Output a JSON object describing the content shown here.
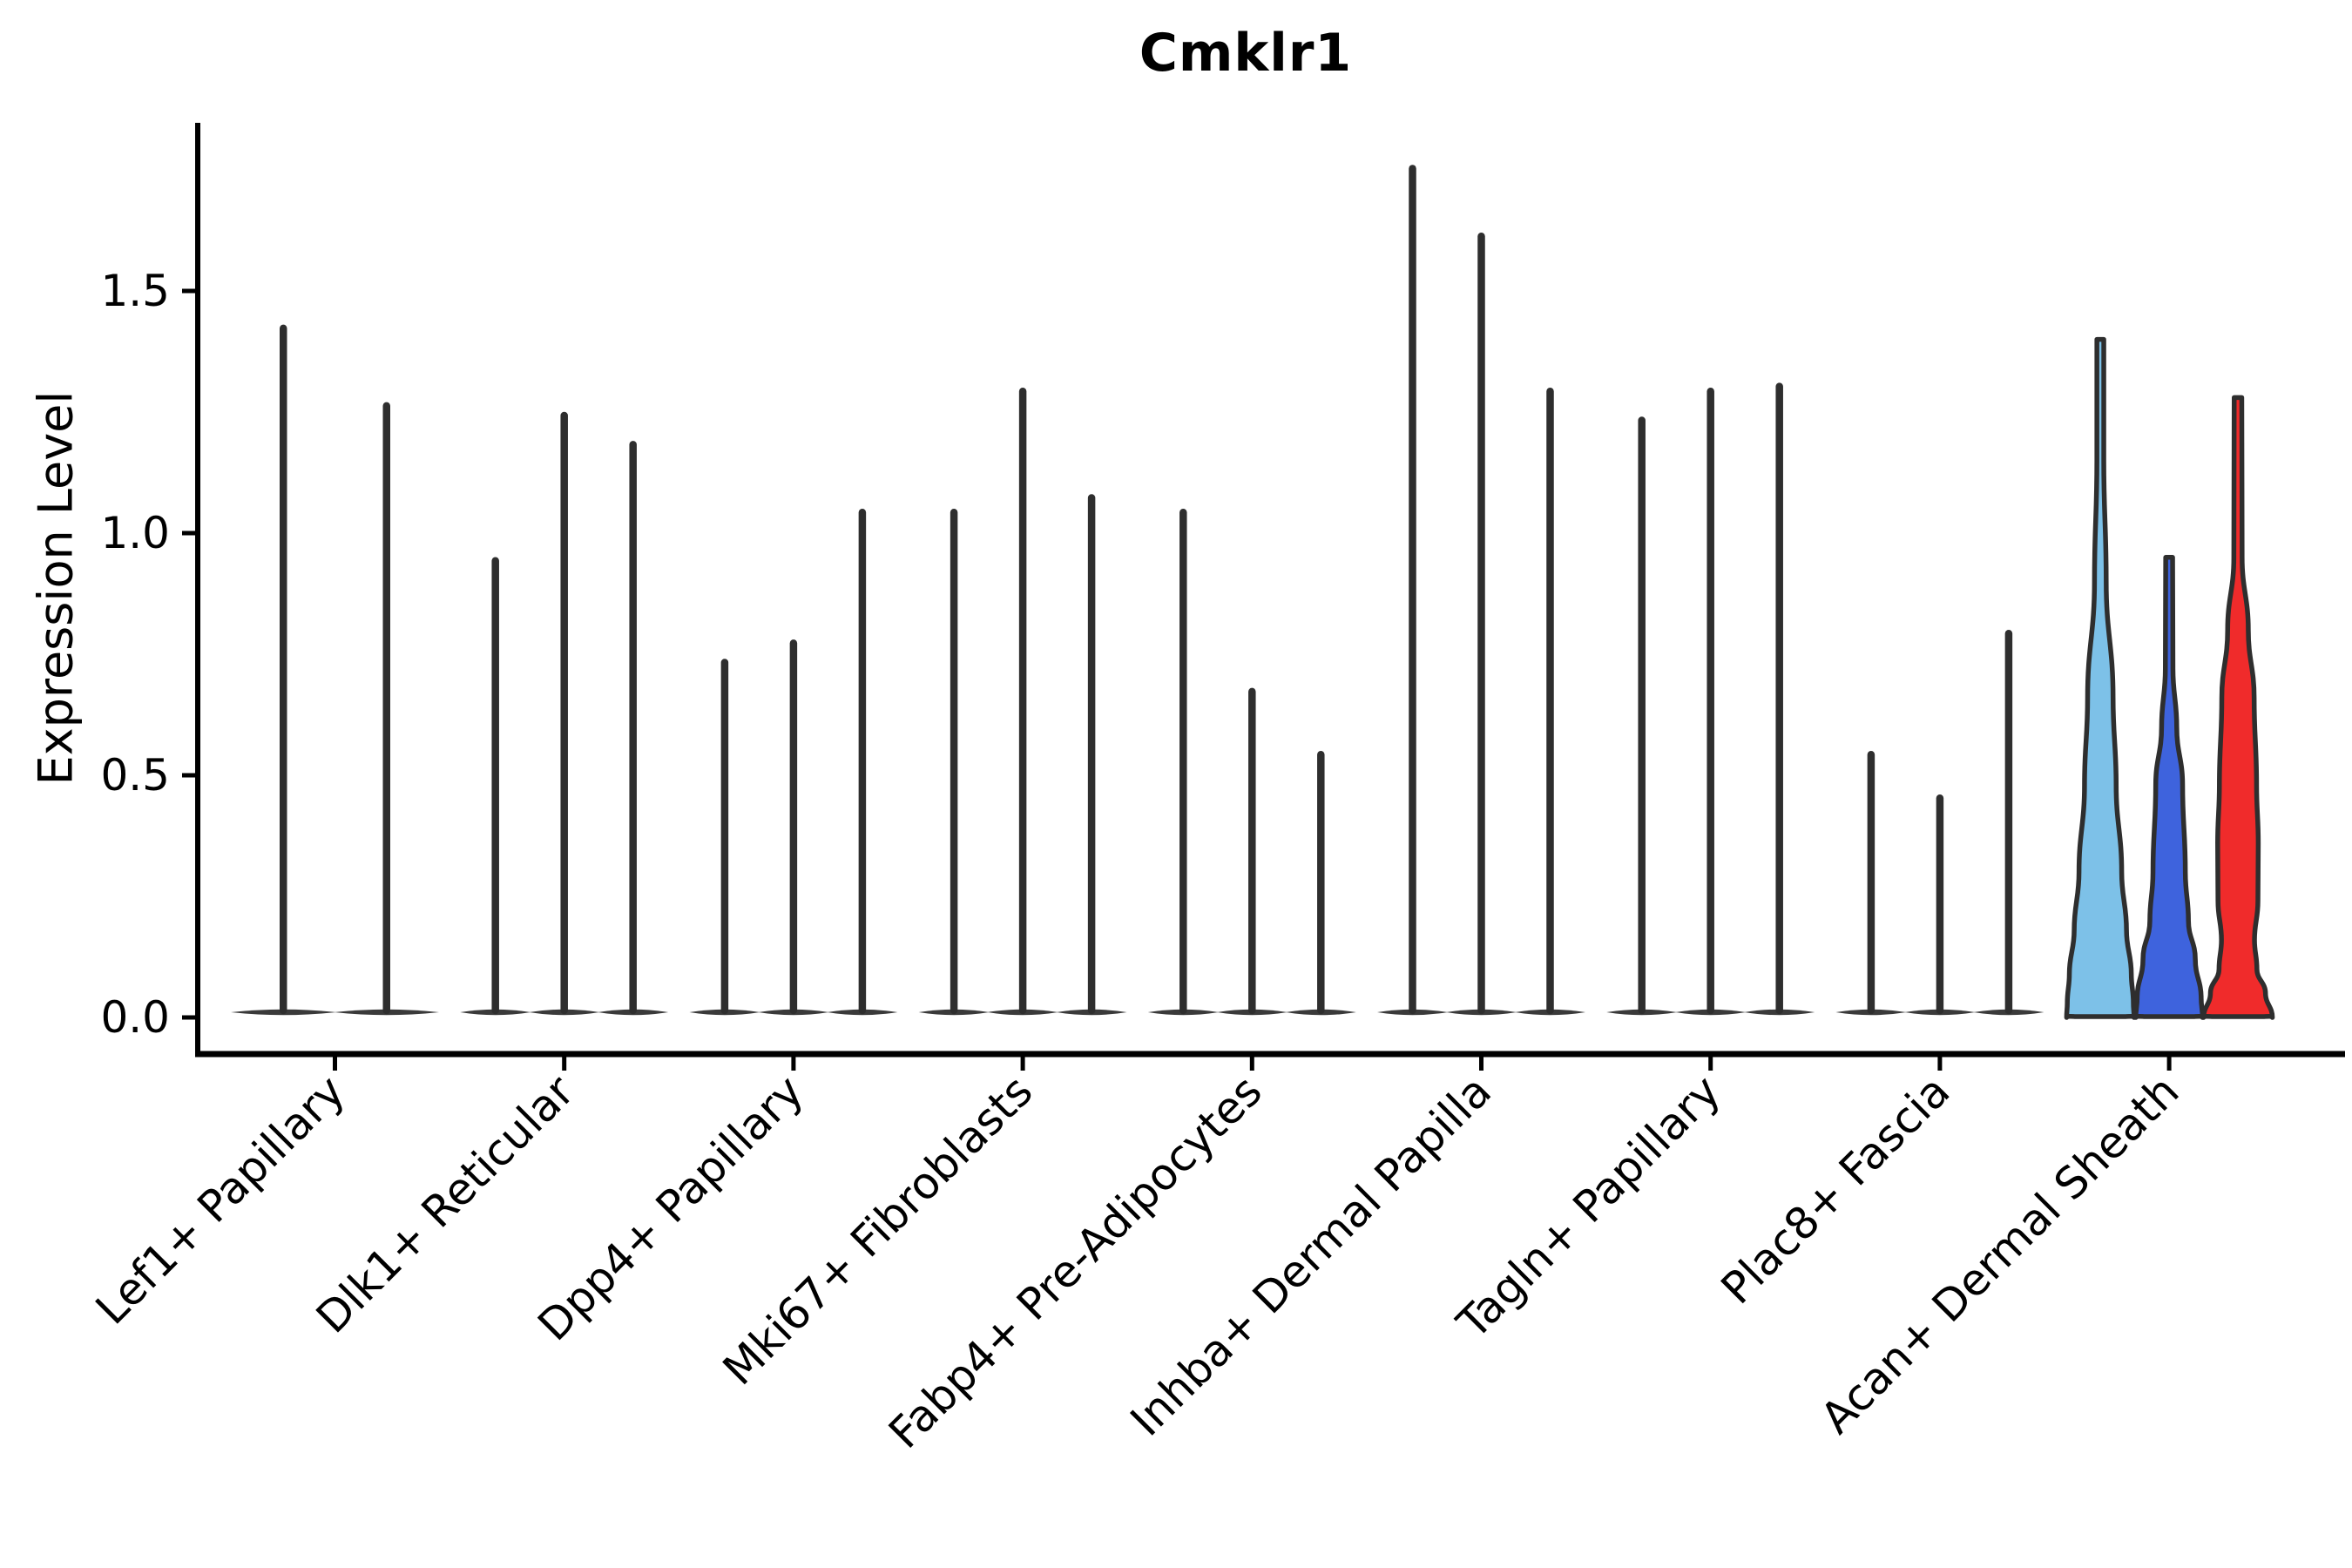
{
  "chart_data": {
    "type": "violin",
    "title": "Cmklr1",
    "ylabel": "Expression Level",
    "xlabel": "",
    "ylim": [
      0,
      1.84
    ],
    "yticks": [
      0.0,
      0.5,
      1.0,
      1.5
    ],
    "ytick_labels": [
      "0.0",
      "0.5",
      "1.0",
      "1.5"
    ],
    "grid": false,
    "legend_position": "none",
    "categories": [
      "Lef1+ Papillary",
      "Dlk1+ Reticular",
      "Dpp4+ Papillary",
      "Mki67+ Fibroblasts",
      "Fabp4+ Pre-Adipocytes",
      "Inhba+ Dermal Papilla",
      "Tagln+ Papillary",
      "Plac8+ Fascia",
      "Acan+ Dermal Sheath"
    ],
    "groups": [
      {
        "label": "Lef1+ Papillary",
        "violins": [
          {
            "peak": 1.43
          },
          {
            "peak": 1.27
          }
        ]
      },
      {
        "label": "Dlk1+ Reticular",
        "violins": [
          {
            "peak": 0.95
          },
          {
            "peak": 1.25
          },
          {
            "peak": 1.19
          }
        ]
      },
      {
        "label": "Dpp4+ Papillary",
        "violins": [
          {
            "peak": 0.74
          },
          {
            "peak": 0.78
          },
          {
            "peak": 1.05
          }
        ]
      },
      {
        "label": "Mki67+ Fibroblasts",
        "violins": [
          {
            "peak": 1.05
          },
          {
            "peak": 1.3
          },
          {
            "peak": 1.08
          }
        ]
      },
      {
        "label": "Fabp4+ Pre-Adipocytes",
        "violins": [
          {
            "peak": 1.05
          },
          {
            "peak": 0.68
          },
          {
            "peak": 0.55
          }
        ]
      },
      {
        "label": "Inhba+ Dermal Papilla",
        "violins": [
          {
            "peak": 1.76
          },
          {
            "peak": 1.62
          },
          {
            "peak": 1.3
          }
        ]
      },
      {
        "label": "Tagln+ Papillary",
        "violins": [
          {
            "peak": 1.24
          },
          {
            "peak": 1.3
          },
          {
            "peak": 1.31
          }
        ]
      },
      {
        "label": "Plac8+ Fascia",
        "violins": [
          {
            "peak": 0.55
          },
          {
            "peak": 0.46
          },
          {
            "peak": 0.8
          }
        ]
      },
      {
        "label": "Acan+ Dermal Sheath",
        "violins": [
          {
            "peak": 1.4,
            "fill": "#7DC1E8",
            "profile": [
              [
                1.4,
                0.1
              ],
              [
                1.15,
                0.1
              ],
              [
                0.9,
                0.17
              ],
              [
                0.66,
                0.37
              ],
              [
                0.48,
                0.46
              ],
              [
                0.3,
                0.62
              ],
              [
                0.18,
                0.76
              ],
              [
                0.09,
                0.9
              ],
              [
                0.03,
                0.96
              ],
              [
                0.0,
                0.98
              ]
            ]
          },
          {
            "peak": 0.95,
            "fill": "#3E63DD",
            "profile": [
              [
                0.95,
                0.1
              ],
              [
                0.72,
                0.11
              ],
              [
                0.6,
                0.22
              ],
              [
                0.48,
                0.39
              ],
              [
                0.3,
                0.47
              ],
              [
                0.2,
                0.56
              ],
              [
                0.12,
                0.76
              ],
              [
                0.04,
                0.93
              ],
              [
                0.0,
                0.97
              ]
            ]
          },
          {
            "peak": 1.28,
            "fill": "#F02B2B",
            "profile": [
              [
                1.28,
                0.11
              ],
              [
                0.95,
                0.12
              ],
              [
                0.8,
                0.3
              ],
              [
                0.66,
                0.47
              ],
              [
                0.48,
                0.54
              ],
              [
                0.36,
                0.59
              ],
              [
                0.24,
                0.58
              ],
              [
                0.16,
                0.48
              ],
              [
                0.1,
                0.55
              ],
              [
                0.05,
                0.8
              ],
              [
                0.0,
                1.0
              ]
            ]
          }
        ]
      }
    ],
    "colors": {
      "spike": "#2E2E2E",
      "violin_outline": "#2E2E2E",
      "axis": "#000000",
      "background": "#FFFFFF",
      "split_fills": [
        "#7DC1E8",
        "#3E63DD",
        "#F02B2B"
      ]
    }
  }
}
